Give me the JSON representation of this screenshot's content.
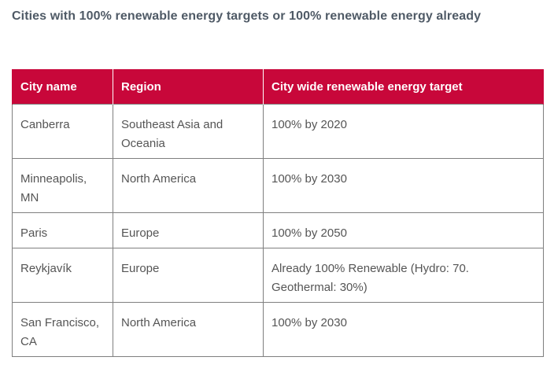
{
  "title": "Cities with 100% renewable energy targets or 100% renewable energy already",
  "table": {
    "headers": [
      "City name",
      "Region",
      "City wide renewable energy target"
    ],
    "rows": [
      [
        "Canberra",
        "Southeast Asia and Oceania",
        "100% by 2020"
      ],
      [
        "Minneapolis, MN",
        "North America",
        "100% by 2030"
      ],
      [
        "Paris",
        "Europe",
        "100% by 2050"
      ],
      [
        "Reykjavík",
        "Europe",
        "Already 100% Renewable (Hydro: 70. Geothermal: 30%)"
      ],
      [
        "San Francisco, CA",
        "North America",
        "100% by 2030"
      ]
    ]
  },
  "colors": {
    "header_background": "#c8073a",
    "header_text": "#ffffff",
    "title_text": "#4f5a66",
    "body_text": "#555555",
    "border": "#7f7f7f"
  }
}
